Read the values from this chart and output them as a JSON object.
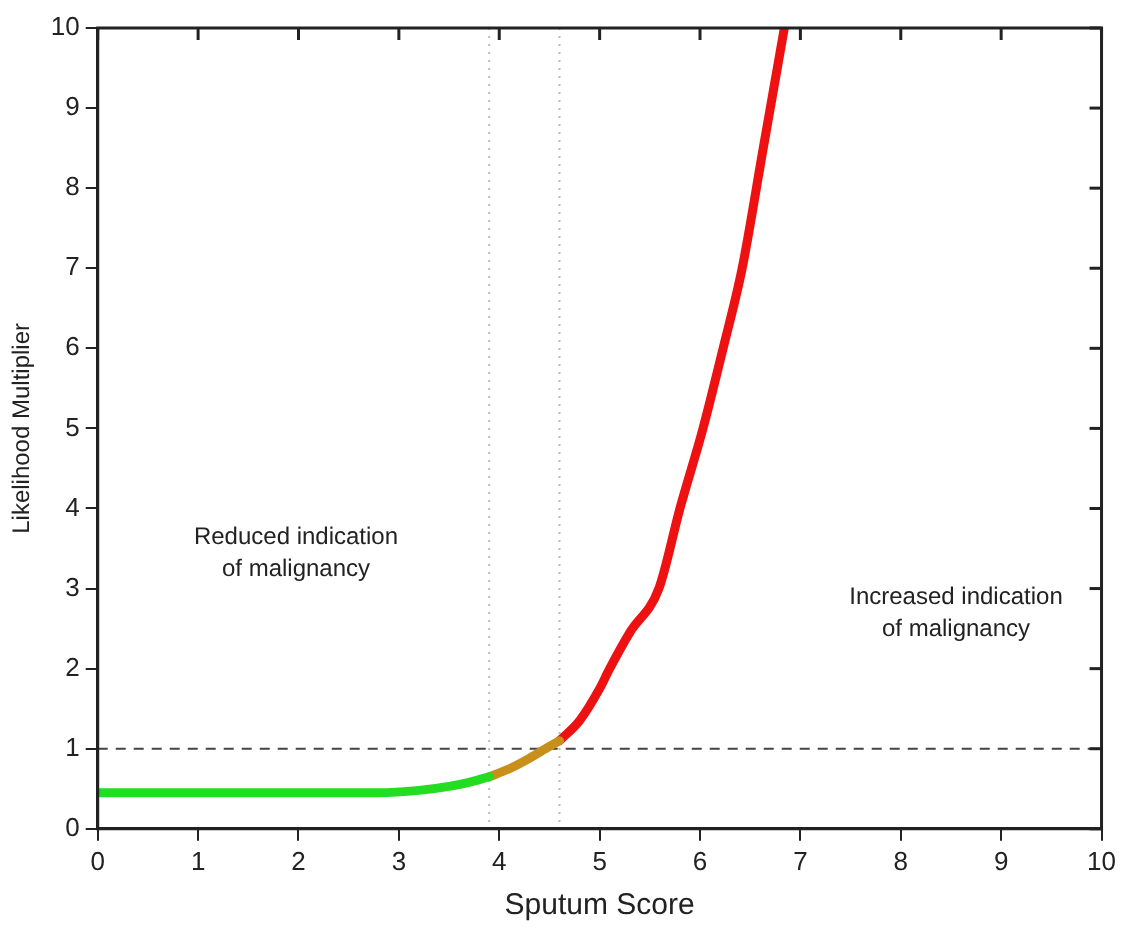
{
  "chart_data": {
    "type": "line",
    "xlabel": "Sputum Score",
    "ylabel": "Likelihood Multiplier",
    "xlim": [
      0,
      10
    ],
    "xticks": [
      0,
      1,
      2,
      3,
      4,
      5,
      6,
      7,
      8,
      9,
      10
    ],
    "ylim": [
      0,
      10
    ],
    "yticks": [
      0,
      1,
      2,
      3,
      4,
      5,
      6,
      7,
      8,
      9,
      10
    ],
    "grid": false,
    "legend": false,
    "marker": "none",
    "line_style": "solid",
    "series": [
      {
        "color": "#22dd22",
        "x": [
          0,
          1,
          2,
          2.8,
          3.2,
          3.5,
          3.7,
          3.9
        ],
        "values": [
          0.45,
          0.45,
          0.45,
          0.45,
          0.48,
          0.53,
          0.58,
          0.65
        ]
      },
      {
        "color": "#c8901a",
        "x": [
          3.9,
          4.1,
          4.3,
          4.5,
          4.6
        ],
        "values": [
          0.65,
          0.75,
          0.88,
          1.03,
          1.1
        ]
      },
      {
        "color": "#ee1111",
        "x": [
          4.6,
          4.8,
          5.0,
          5.1,
          5.3,
          5.59,
          5.8,
          6.03,
          6.23,
          6.42,
          6.63,
          6.84
        ],
        "values": [
          1.1,
          1.35,
          1.75,
          2.0,
          2.45,
          3.0,
          4.0,
          5.0,
          6.0,
          7.0,
          8.5,
          10
        ]
      }
    ],
    "ref_lines": [
      {
        "axis": "y",
        "value": 1,
        "color": "#444444",
        "line_style": "dashed"
      },
      {
        "axis": "x",
        "value": 3.9,
        "color": "#bbbbbb",
        "line_style": "dotted"
      },
      {
        "axis": "x",
        "value": 4.6,
        "color": "#bbbbbb",
        "line_style": "dotted"
      }
    ],
    "annotations": [
      "Reduced indication\nof malignancy",
      "Increased indication\nof malignancy"
    ]
  }
}
